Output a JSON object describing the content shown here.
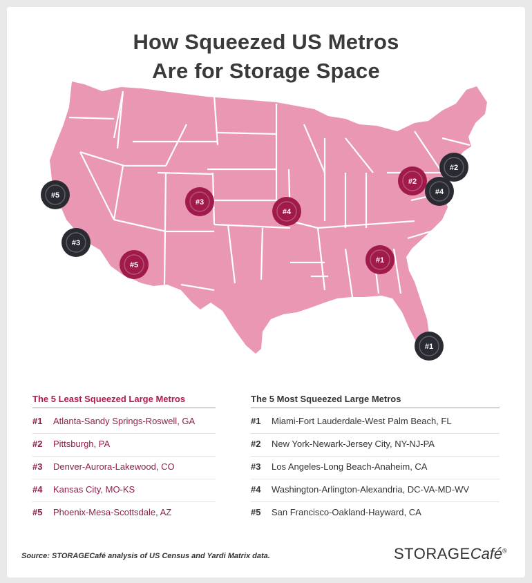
{
  "title": {
    "line1": "How Squeezed US Metros",
    "line2": "Are for Storage Space"
  },
  "colors": {
    "land": "#ea97b3",
    "state_border": "#ffffff",
    "least_marker": "#a01a4b",
    "most_marker": "#2a2a33",
    "least_heading": "#b5174f"
  },
  "map": {
    "least_markers": [
      {
        "label": "#1",
        "city": "Atlanta"
      },
      {
        "label": "#2",
        "city": "Pittsburgh"
      },
      {
        "label": "#3",
        "city": "Denver"
      },
      {
        "label": "#4",
        "city": "Kansas City"
      },
      {
        "label": "#5",
        "city": "Phoenix"
      }
    ],
    "most_markers": [
      {
        "label": "#1",
        "city": "Miami"
      },
      {
        "label": "#2",
        "city": "New York"
      },
      {
        "label": "#3",
        "city": "Los Angeles"
      },
      {
        "label": "#4",
        "city": "Washington"
      },
      {
        "label": "#5",
        "city": "San Francisco"
      }
    ]
  },
  "least": {
    "heading": "The 5 Least Squeezed Large Metros",
    "items": [
      {
        "rank": "#1",
        "name": "Atlanta-Sandy Springs-Roswell, GA"
      },
      {
        "rank": "#2",
        "name": "Pittsburgh, PA"
      },
      {
        "rank": "#3",
        "name": "Denver-Aurora-Lakewood, CO"
      },
      {
        "rank": "#4",
        "name": "Kansas City, MO-KS"
      },
      {
        "rank": "#5",
        "name": "Phoenix-Mesa-Scottsdale, AZ"
      }
    ]
  },
  "most": {
    "heading": "The 5 Most Squeezed Large Metros",
    "items": [
      {
        "rank": "#1",
        "name": "Miami-Fort Lauderdale-West Palm Beach, FL"
      },
      {
        "rank": "#2",
        "name": "New York-Newark-Jersey City, NY-NJ-PA"
      },
      {
        "rank": "#3",
        "name": "Los Angeles-Long Beach-Anaheim, CA"
      },
      {
        "rank": "#4",
        "name": "Washington-Arlington-Alexandria, DC-VA-MD-WV"
      },
      {
        "rank": "#5",
        "name": "San Francisco-Oakland-Hayward, CA"
      }
    ]
  },
  "source": "Source: STORAGECafé analysis of US Census and Yardi Matrix data.",
  "logo": {
    "part1": "STORAGE",
    "part2": "Café",
    "mark": "®"
  }
}
